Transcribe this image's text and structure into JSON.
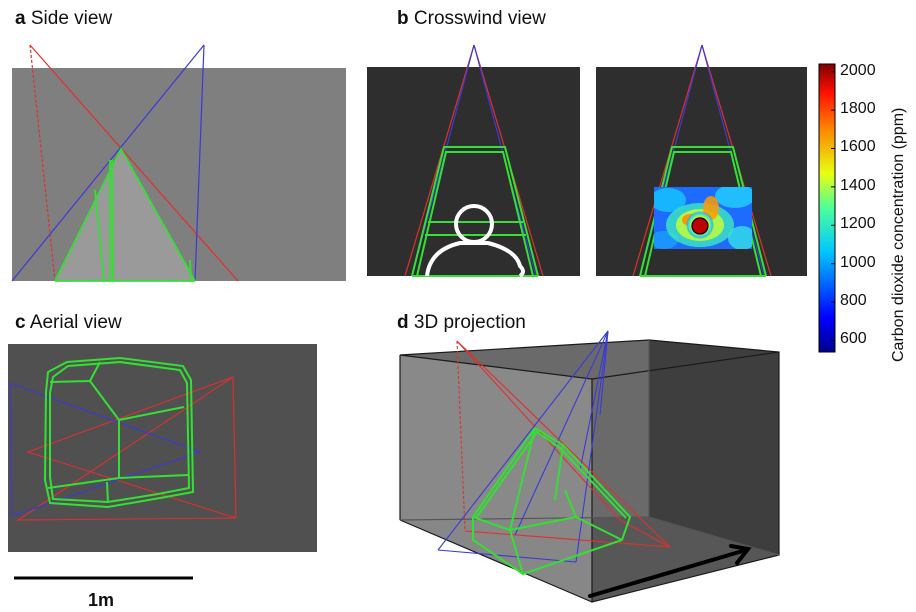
{
  "panels": {
    "a": {
      "letter": "a",
      "title": "Side view"
    },
    "b": {
      "letter": "b",
      "title": "Crosswind view"
    },
    "c": {
      "letter": "c",
      "title": "Aerial view"
    },
    "d": {
      "letter": "d",
      "title": "3D projection"
    }
  },
  "colorbar": {
    "title": "Carbon dioxide concentration (ppm)",
    "ticks": [
      "2000",
      "1800",
      "1600",
      "1400",
      "1200",
      "1000",
      "800",
      "600"
    ],
    "range": [
      540,
      2040
    ]
  },
  "scale_bar": {
    "label": "1m"
  },
  "colors": {
    "panel_light": "#7f7f7f",
    "panel_dark": "#2e2e2e",
    "panel_mid": "#505050",
    "red_camera": "#e0302c",
    "blue_camera": "#3a3ad8",
    "plume": "#33e033",
    "person": "#ffffff"
  }
}
